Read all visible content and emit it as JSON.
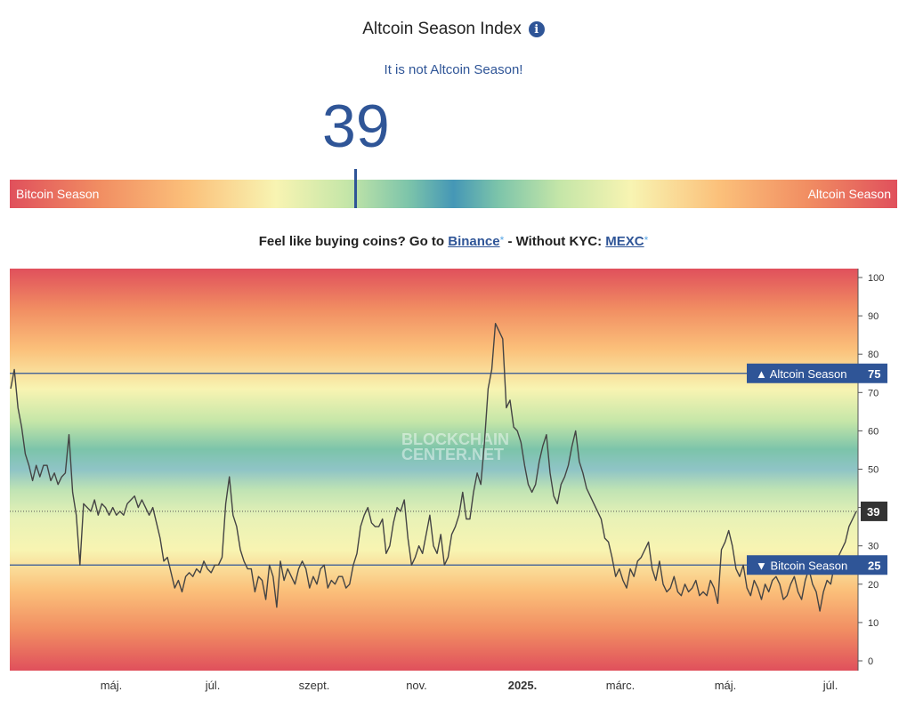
{
  "header": {
    "title": "Altcoin Season Index",
    "info_icon": "info-icon",
    "status": "It is not Altcoin Season!",
    "value": "39"
  },
  "gauge": {
    "left_label": "Bitcoin Season",
    "right_label": "Altcoin Season",
    "value": 39
  },
  "promo": {
    "text1": "Feel like buying coins? Go to",
    "link1": "Binance",
    "star1": "*",
    "text2": "- Without KYC:",
    "link2": "MEXC",
    "star2": "*"
  },
  "chart_data": {
    "type": "line",
    "watermark": [
      "BLOCKCHAIN",
      "CENTER.NET"
    ],
    "ylim": [
      0,
      100
    ],
    "y_ticks": [
      0,
      10,
      20,
      30,
      40,
      50,
      60,
      70,
      80,
      90,
      100
    ],
    "x_tick_labels": [
      "máj.",
      "júl.",
      "szept.",
      "nov.",
      "2025.",
      "márc.",
      "máj.",
      "júl."
    ],
    "thresholds": [
      {
        "label": "▲ Altcoin Season",
        "value": 75
      },
      {
        "label": "▼ Bitcoin Season",
        "value": 25
      }
    ],
    "current": {
      "value": 39,
      "label": "39"
    },
    "colors": {
      "line": "#444444",
      "threshold": "#2f5597",
      "label_bg": "#2f5597",
      "current_bg": "#333333"
    },
    "values": [
      71,
      76,
      66,
      61,
      54,
      51,
      47,
      51,
      48,
      51,
      51,
      47,
      49,
      46,
      48,
      49,
      59,
      44,
      38,
      25,
      41,
      40,
      39,
      42,
      38,
      41,
      40,
      38,
      40,
      38,
      39,
      38,
      41,
      42,
      43,
      40,
      42,
      40,
      38,
      40,
      36,
      32,
      26,
      27,
      23,
      19,
      21,
      18,
      22,
      23,
      22,
      24,
      23,
      26,
      24,
      23,
      25,
      25,
      27,
      41,
      48,
      38,
      35,
      29,
      26,
      24,
      24,
      18,
      22,
      21,
      16,
      25,
      22,
      14,
      26,
      21,
      24,
      22,
      20,
      24,
      26,
      24,
      19,
      22,
      20,
      24,
      25,
      19,
      21,
      20,
      22,
      22,
      19,
      20,
      25,
      28,
      35,
      38,
      40,
      36,
      35,
      35,
      37,
      28,
      30,
      36,
      40,
      39,
      42,
      32,
      25,
      27,
      30,
      28,
      33,
      38,
      30,
      28,
      33,
      25,
      27,
      33,
      35,
      38,
      44,
      37,
      37,
      44,
      49,
      46,
      57,
      71,
      76,
      88,
      86,
      84,
      66,
      68,
      61,
      60,
      57,
      51,
      46,
      44,
      46,
      52,
      56,
      59,
      49,
      43,
      41,
      46,
      48,
      51,
      56,
      60,
      52,
      49,
      45,
      43,
      41,
      39,
      37,
      32,
      31,
      27,
      22,
      24,
      21,
      19,
      24,
      22,
      26,
      27,
      29,
      31,
      24,
      21,
      26,
      20,
      18,
      19,
      22,
      18,
      17,
      20,
      18,
      19,
      21,
      17,
      18,
      17,
      21,
      19,
      15,
      29,
      31,
      34,
      30,
      24,
      22,
      25,
      19,
      17,
      21,
      19,
      16,
      20,
      18,
      21,
      22,
      20,
      16,
      17,
      20,
      22,
      18,
      16,
      21,
      24,
      20,
      18,
      13,
      18,
      21,
      20,
      25,
      27,
      29,
      31,
      35,
      37,
      39
    ]
  }
}
